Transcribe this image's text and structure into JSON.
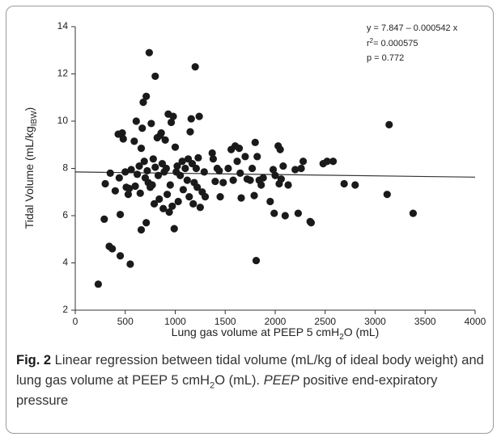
{
  "chart_data": {
    "type": "scatter",
    "x": [
      230,
      290,
      300,
      340,
      350,
      370,
      400,
      430,
      440,
      450,
      450,
      470,
      480,
      500,
      510,
      530,
      540,
      550,
      560,
      590,
      600,
      610,
      620,
      640,
      650,
      660,
      660,
      670,
      680,
      690,
      700,
      710,
      710,
      720,
      730,
      740,
      750,
      760,
      770,
      780,
      790,
      800,
      800,
      820,
      830,
      840,
      850,
      860,
      870,
      880,
      890,
      900,
      910,
      920,
      930,
      940,
      950,
      960,
      970,
      980,
      990,
      1000,
      1010,
      1020,
      1030,
      1050,
      1070,
      1080,
      1100,
      1120,
      1130,
      1140,
      1150,
      1160,
      1170,
      1180,
      1190,
      1200,
      1210,
      1220,
      1230,
      1240,
      1250,
      1270,
      1290,
      1300,
      1370,
      1380,
      1400,
      1420,
      1440,
      1450,
      1480,
      1530,
      1560,
      1580,
      1600,
      1620,
      1640,
      1650,
      1660,
      1700,
      1720,
      1750,
      1770,
      1790,
      1800,
      1810,
      1820,
      1840,
      1860,
      1880,
      1950,
      1980,
      1990,
      2000,
      2030,
      2040,
      2050,
      2060,
      2080,
      2100,
      2130,
      2200,
      2230,
      2260,
      2280,
      2350,
      2360,
      2480,
      2520,
      2580,
      2690,
      2800,
      3120,
      3140,
      3380
    ],
    "values": [
      3.1,
      5.85,
      7.35,
      4.7,
      7.8,
      4.6,
      7.05,
      9.45,
      7.6,
      4.3,
      6.05,
      9.5,
      9.25,
      7.85,
      7.2,
      6.9,
      7.15,
      3.95,
      7.95,
      9.15,
      7.25,
      10.0,
      7.75,
      8.1,
      6.95,
      8.85,
      5.4,
      9.7,
      10.8,
      8.3,
      7.6,
      11.05,
      5.7,
      7.9,
      7.4,
      12.9,
      7.2,
      9.9,
      7.3,
      8.4,
      6.5,
      11.9,
      8.05,
      9.3,
      7.7,
      6.7,
      9.4,
      9.5,
      8.2,
      6.3,
      7.85,
      9.2,
      8.0,
      6.9,
      10.3,
      6.15,
      7.3,
      9.95,
      6.4,
      10.2,
      5.45,
      8.9,
      7.85,
      8.1,
      6.6,
      7.7,
      8.3,
      7.1,
      8.0,
      7.5,
      8.4,
      6.8,
      9.55,
      10.1,
      8.2,
      6.5,
      7.4,
      12.3,
      8.0,
      7.2,
      8.45,
      10.2,
      6.35,
      7.0,
      7.85,
      6.8,
      8.65,
      8.4,
      7.45,
      8.0,
      7.9,
      6.8,
      7.4,
      8.0,
      8.8,
      7.5,
      8.95,
      8.3,
      8.85,
      7.8,
      6.75,
      8.5,
      7.55,
      7.5,
      8.0,
      6.85,
      9.1,
      4.1,
      8.5,
      7.5,
      7.3,
      7.6,
      6.6,
      7.95,
      6.1,
      7.7,
      8.95,
      7.35,
      8.8,
      7.55,
      8.1,
      6.0,
      7.3,
      7.95,
      6.1,
      8.0,
      8.3,
      5.75,
      5.7,
      8.2,
      8.3,
      8.3,
      7.35,
      7.3,
      6.9,
      9.85,
      6.1
    ],
    "color": "#1a1a1a",
    "fit": {
      "x": [
        0,
        4000
      ],
      "values": [
        7.85,
        7.63
      ],
      "color": "#333333"
    },
    "xlim": [
      0,
      4000
    ],
    "xticks": [
      0,
      500,
      1000,
      1500,
      2000,
      2500,
      3000,
      3500,
      4000
    ],
    "ylim": [
      2,
      14
    ],
    "yticks": [
      2,
      4,
      6,
      8,
      10,
      12,
      14
    ],
    "grid": false,
    "xlabel": [
      "Lung gas volume at PEEP 5 cmH",
      "2",
      "O (mL)"
    ],
    "ylabel": [
      "Tidal Volume (mL/kg",
      "IBW",
      ")"
    ],
    "annotation": {
      "equation": "y = 7.847 – 0.000542 x",
      "r2": [
        "r",
        "2",
        "= 0.000575"
      ],
      "p": "p = 0.772"
    }
  },
  "caption": {
    "label": "Fig. 2",
    "text": " Linear regression between tidal volume (mL/kg of ideal body weight) and lung gas volume at PEEP 5 cmH",
    "sub": "2",
    "text2": "O (mL). ",
    "abbr": "PEEP",
    "text3": " positive end-expiratory pressure"
  }
}
